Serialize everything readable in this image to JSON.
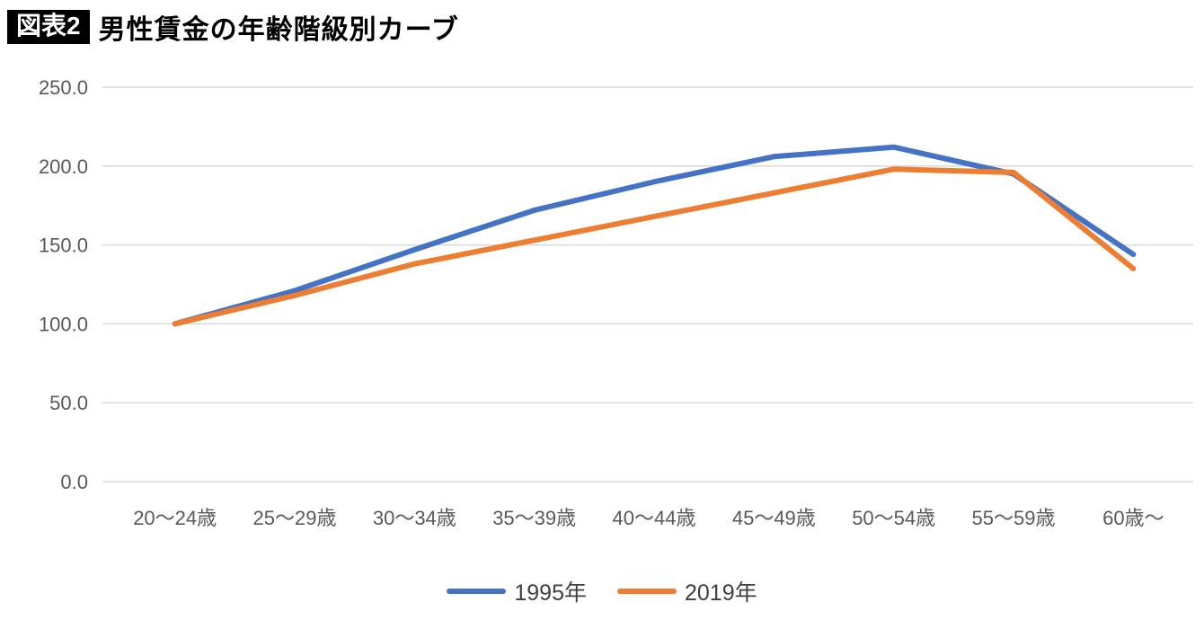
{
  "header": {
    "badge": "図表2",
    "title": "男性賃金の年齢階級別カーブ"
  },
  "chart_data": {
    "type": "line",
    "title": "男性賃金の年齢階級別カーブ",
    "categories": [
      "20～24歳",
      "25～29歳",
      "30～34歳",
      "35～39歳",
      "40～44歳",
      "45～49歳",
      "50～54歳",
      "55～59歳",
      "60歳～"
    ],
    "series": [
      {
        "name": "1995年",
        "color": "#4472C4",
        "values": [
          100.0,
          121.0,
          147.0,
          172.0,
          190.0,
          206.0,
          212.0,
          195.0,
          144.0
        ]
      },
      {
        "name": "2019年",
        "color": "#ED7D31",
        "values": [
          100.0,
          118.0,
          138.0,
          153.0,
          168.0,
          183.0,
          198.0,
          196.0,
          135.0
        ]
      }
    ],
    "xlabel": "",
    "ylabel": "",
    "ylim": [
      0,
      250
    ],
    "ytick_step": 50,
    "ytick_labels": [
      "0.0",
      "50.0",
      "100.0",
      "150.0",
      "200.0",
      "250.0"
    ],
    "grid": true,
    "legend_position": "bottom",
    "gridline_color": "#d9d9d9",
    "tick_label_color": "#595959"
  }
}
